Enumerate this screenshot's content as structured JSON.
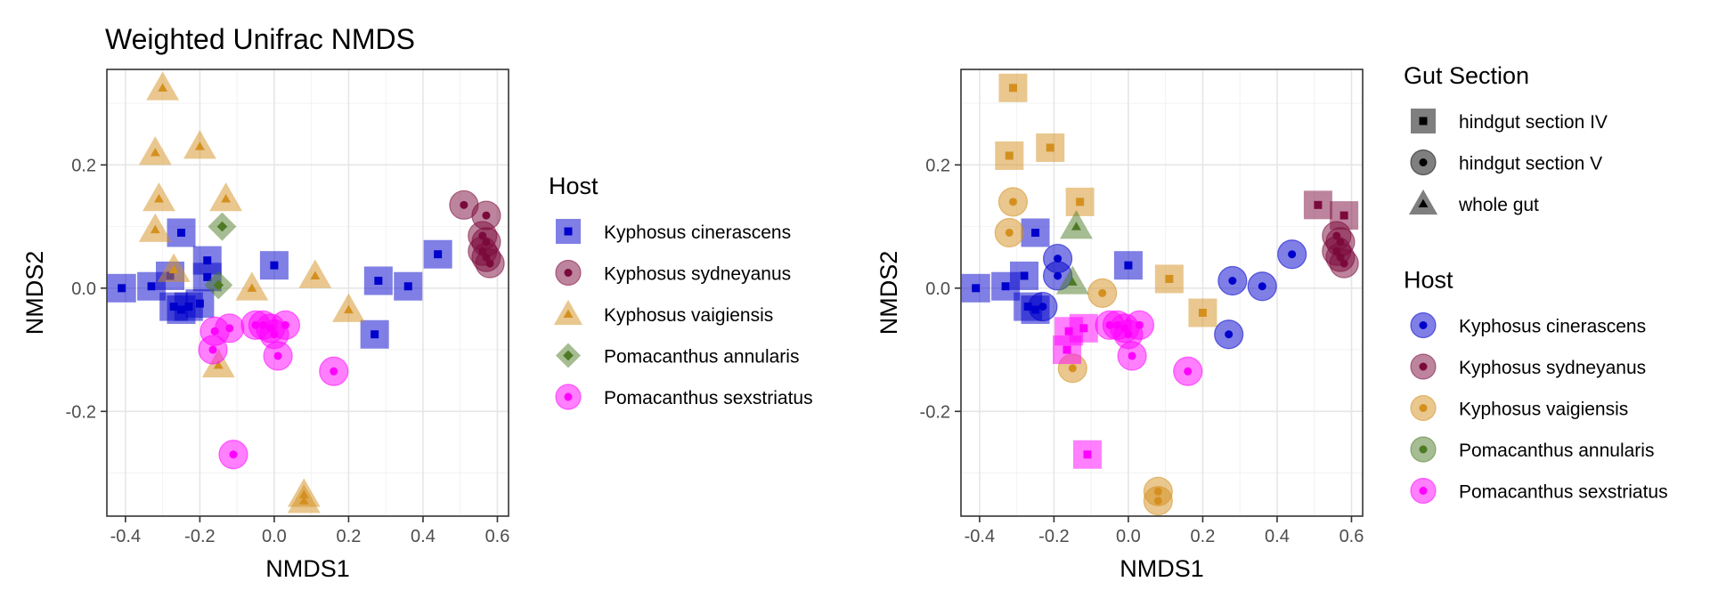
{
  "chart_data": [
    {
      "type": "scatter",
      "title": "Weighted Unifrac NMDS",
      "xlabel": "NMDS1",
      "ylabel": "NMDS2",
      "xlim": [
        -0.45,
        0.63
      ],
      "ylim": [
        -0.37,
        0.355
      ],
      "xticks": [
        -0.4,
        -0.2,
        0.0,
        0.2,
        0.4,
        0.6
      ],
      "xtick_labels": [
        "-0.4",
        "-0.2",
        "0.0",
        "0.2",
        "0.4",
        "0.6"
      ],
      "yticks": [
        -0.2,
        0.0,
        0.2
      ],
      "ytick_labels": [
        "-0.2",
        "0.0",
        "0.2"
      ],
      "shape_by": "host",
      "color_by": "host",
      "grid": true,
      "legend": {
        "position": "right",
        "groups": [
          {
            "title": "Host",
            "entries": [
              {
                "label": "Kyphosus cinerascens",
                "color": "#0000cc",
                "shape": "square"
              },
              {
                "label": "Kyphosus sydneyanus",
                "color": "#7b0a3c",
                "shape": "circle"
              },
              {
                "label": "Kyphosus vaigiensis",
                "color": "#d4901f",
                "shape": "triangle"
              },
              {
                "label": "Pomacanthus annularis",
                "color": "#4e7a26",
                "shape": "diamond"
              },
              {
                "label": "Pomacanthus sexstriatus",
                "color": "#ff00ff",
                "shape": "circle"
              }
            ]
          }
        ]
      },
      "series": [
        {
          "name": "Kyphosus cinerascens",
          "color": "#0000cc",
          "shape": "square",
          "points": [
            [
              -0.41,
              0.0
            ],
            [
              -0.33,
              0.003
            ],
            [
              -0.28,
              0.02
            ],
            [
              -0.25,
              0.09
            ],
            [
              -0.27,
              -0.03
            ],
            [
              -0.25,
              -0.035
            ],
            [
              -0.23,
              -0.03
            ],
            [
              -0.2,
              -0.025
            ],
            [
              -0.18,
              0.045
            ],
            [
              -0.18,
              0.018
            ],
            [
              0.0,
              0.037
            ],
            [
              0.28,
              0.012
            ],
            [
              0.36,
              0.003
            ],
            [
              0.44,
              0.055
            ],
            [
              0.27,
              -0.075
            ]
          ]
        },
        {
          "name": "Kyphosus sydneyanus",
          "color": "#7b0a3c",
          "shape": "circle",
          "points": [
            [
              0.51,
              0.135
            ],
            [
              0.57,
              0.118
            ],
            [
              0.56,
              0.085
            ],
            [
              0.57,
              0.075
            ],
            [
              0.56,
              0.06
            ],
            [
              0.57,
              0.05
            ],
            [
              0.58,
              0.04
            ]
          ]
        },
        {
          "name": "Kyphosus vaigiensis",
          "color": "#d4901f",
          "shape": "triangle",
          "points": [
            [
              -0.3,
              0.325
            ],
            [
              -0.32,
              0.22
            ],
            [
              -0.2,
              0.23
            ],
            [
              -0.31,
              0.145
            ],
            [
              -0.13,
              0.145
            ],
            [
              -0.32,
              0.095
            ],
            [
              -0.27,
              0.03
            ],
            [
              -0.06,
              0.0
            ],
            [
              0.11,
              0.02
            ],
            [
              0.2,
              -0.035
            ],
            [
              -0.15,
              -0.125
            ],
            [
              0.08,
              -0.335
            ],
            [
              0.08,
              -0.345
            ]
          ]
        },
        {
          "name": "Pomacanthus annularis",
          "color": "#4e7a26",
          "shape": "diamond",
          "points": [
            [
              -0.14,
              0.1
            ],
            [
              -0.15,
              0.005
            ]
          ]
        },
        {
          "name": "Pomacanthus sexstriatus",
          "color": "#ff00ff",
          "shape": "circle",
          "points": [
            [
              -0.16,
              -0.07
            ],
            [
              -0.12,
              -0.065
            ],
            [
              -0.165,
              -0.1
            ],
            [
              -0.05,
              -0.06
            ],
            [
              -0.03,
              -0.06
            ],
            [
              -0.01,
              -0.065
            ],
            [
              0.0,
              -0.075
            ],
            [
              0.03,
              -0.06
            ],
            [
              0.01,
              -0.11
            ],
            [
              0.16,
              -0.135
            ],
            [
              -0.11,
              -0.27
            ]
          ]
        }
      ]
    },
    {
      "type": "scatter",
      "title": "",
      "xlabel": "NMDS1",
      "ylabel": "NMDS2",
      "xlim": [
        -0.45,
        0.63
      ],
      "ylim": [
        -0.37,
        0.355
      ],
      "xticks": [
        -0.4,
        -0.2,
        0.0,
        0.2,
        0.4,
        0.6
      ],
      "xtick_labels": [
        "-0.4",
        "-0.2",
        "0.0",
        "0.2",
        "0.4",
        "0.6"
      ],
      "yticks": [
        -0.2,
        0.0,
        0.2
      ],
      "ytick_labels": [
        "-0.2",
        "0.0",
        "0.2"
      ],
      "shape_by": "gut_section",
      "color_by": "host",
      "grid": true,
      "legend": {
        "position": "right",
        "groups": [
          {
            "title": "Gut Section",
            "entries": [
              {
                "label": "hindgut section IV",
                "color": "#000000",
                "shape": "square"
              },
              {
                "label": "hindgut section V",
                "color": "#000000",
                "shape": "circle"
              },
              {
                "label": "whole gut",
                "color": "#000000",
                "shape": "triangle"
              }
            ]
          },
          {
            "title": "Host",
            "entries": [
              {
                "label": "Kyphosus cinerascens",
                "color": "#0000cc",
                "shape": "circle"
              },
              {
                "label": "Kyphosus sydneyanus",
                "color": "#7b0a3c",
                "shape": "circle"
              },
              {
                "label": "Kyphosus vaigiensis",
                "color": "#d4901f",
                "shape": "circle"
              },
              {
                "label": "Pomacanthus annularis",
                "color": "#4e7a26",
                "shape": "circle"
              },
              {
                "label": "Pomacanthus sexstriatus",
                "color": "#ff00ff",
                "shape": "circle"
              }
            ]
          }
        ]
      },
      "series": [
        {
          "name": "Kyphosus cinerascens",
          "color": "#0000cc",
          "points": [
            [
              -0.41,
              0.0,
              "square"
            ],
            [
              -0.33,
              0.003,
              "square"
            ],
            [
              -0.28,
              0.02,
              "square"
            ],
            [
              -0.25,
              0.09,
              "square"
            ],
            [
              -0.27,
              -0.03,
              "square"
            ],
            [
              -0.25,
              -0.035,
              "square"
            ],
            [
              0.0,
              0.037,
              "square"
            ],
            [
              -0.19,
              0.048,
              "circle"
            ],
            [
              -0.19,
              0.02,
              "circle"
            ],
            [
              -0.23,
              -0.03,
              "circle"
            ],
            [
              0.28,
              0.012,
              "circle"
            ],
            [
              0.36,
              0.003,
              "circle"
            ],
            [
              0.44,
              0.055,
              "circle"
            ],
            [
              0.27,
              -0.075,
              "circle"
            ]
          ]
        },
        {
          "name": "Kyphosus sydneyanus",
          "color": "#7b0a3c",
          "points": [
            [
              0.51,
              0.135,
              "square"
            ],
            [
              0.58,
              0.118,
              "square"
            ],
            [
              0.56,
              0.085,
              "circle"
            ],
            [
              0.57,
              0.075,
              "circle"
            ],
            [
              0.56,
              0.06,
              "circle"
            ],
            [
              0.57,
              0.05,
              "circle"
            ],
            [
              0.58,
              0.04,
              "circle"
            ]
          ]
        },
        {
          "name": "Kyphosus vaigiensis",
          "color": "#d4901f",
          "points": [
            [
              -0.31,
              0.325,
              "square"
            ],
            [
              -0.32,
              0.215,
              "square"
            ],
            [
              -0.21,
              0.228,
              "square"
            ],
            [
              -0.13,
              0.14,
              "square"
            ],
            [
              0.11,
              0.015,
              "square"
            ],
            [
              0.2,
              -0.04,
              "square"
            ],
            [
              -0.31,
              0.14,
              "circle"
            ],
            [
              -0.32,
              0.09,
              "circle"
            ],
            [
              -0.07,
              -0.008,
              "circle"
            ],
            [
              -0.15,
              -0.13,
              "circle"
            ],
            [
              0.08,
              -0.33,
              "circle"
            ],
            [
              0.08,
              -0.345,
              "circle"
            ]
          ]
        },
        {
          "name": "Pomacanthus annularis",
          "color": "#4e7a26",
          "points": [
            [
              -0.14,
              0.1,
              "triangle"
            ],
            [
              -0.15,
              0.01,
              "triangle"
            ]
          ]
        },
        {
          "name": "Pomacanthus sexstriatus",
          "color": "#ff00ff",
          "points": [
            [
              -0.16,
              -0.07,
              "square"
            ],
            [
              -0.12,
              -0.065,
              "square"
            ],
            [
              -0.165,
              -0.1,
              "square"
            ],
            [
              -0.11,
              -0.27,
              "square"
            ],
            [
              -0.05,
              -0.06,
              "circle"
            ],
            [
              -0.03,
              -0.06,
              "circle"
            ],
            [
              -0.01,
              -0.065,
              "circle"
            ],
            [
              0.0,
              -0.075,
              "circle"
            ],
            [
              0.03,
              -0.06,
              "circle"
            ],
            [
              0.01,
              -0.11,
              "circle"
            ],
            [
              0.16,
              -0.135,
              "circle"
            ]
          ]
        }
      ]
    }
  ]
}
